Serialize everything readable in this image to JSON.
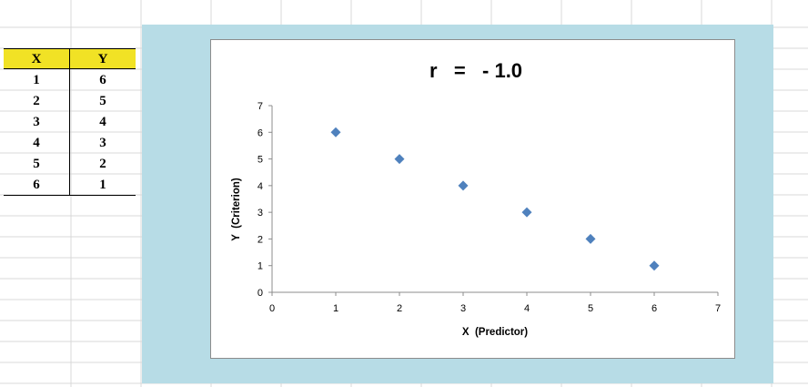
{
  "table": {
    "headers": [
      "X",
      "Y"
    ],
    "rows": [
      [
        "1",
        "6"
      ],
      [
        "2",
        "5"
      ],
      [
        "3",
        "4"
      ],
      [
        "4",
        "3"
      ],
      [
        "5",
        "2"
      ],
      [
        "6",
        "1"
      ]
    ]
  },
  "colors": {
    "header_fill": "#f1e225",
    "chart_frame": "#b7dce6",
    "marker": "#4f81bd",
    "gridline": "#d9d9d9"
  },
  "chart_data": {
    "type": "scatter",
    "title": "r   =   - 1.0",
    "xlabel": "X  (Predictor)",
    "ylabel": "Y  (Criterion)",
    "x": [
      1,
      2,
      3,
      4,
      5,
      6
    ],
    "y": [
      6,
      5,
      4,
      3,
      2,
      1
    ],
    "xlim": [
      0,
      7
    ],
    "ylim": [
      0,
      7
    ],
    "xticks": [
      "0",
      "1",
      "2",
      "3",
      "4",
      "5",
      "6",
      "7"
    ],
    "yticks": [
      "0",
      "1",
      "2",
      "3",
      "4",
      "5",
      "6",
      "7"
    ],
    "grid": false,
    "legend": "none",
    "marker": "diamond"
  }
}
